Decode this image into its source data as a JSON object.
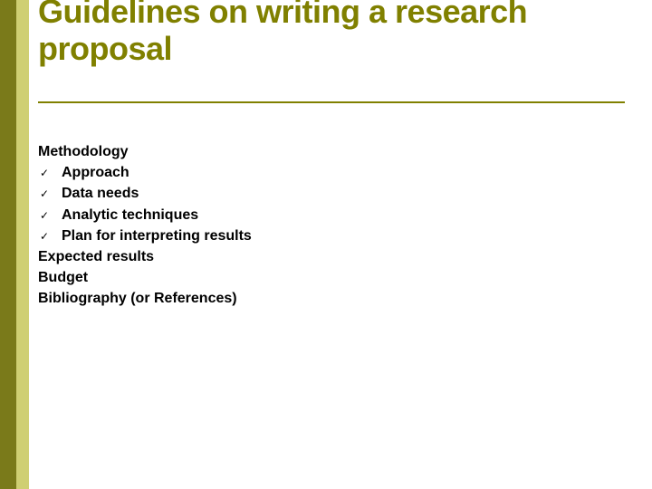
{
  "colors": {
    "stripe_dark": "#7a7a1a",
    "stripe_light": "#cfcf73",
    "title": "#808000",
    "rule": "#808000",
    "body_text": "#000000"
  },
  "title": "Guidelines on writing a research proposal",
  "sections": {
    "methodology_label": "Methodology",
    "methodology_items": {
      "0": "Approach",
      "1": "Data needs",
      "2": "Analytic techniques",
      "3": " Plan for interpreting results"
    },
    "expected_results": "Expected results",
    "budget": "Budget",
    "bibliography": "Bibliography (or References)"
  },
  "check_glyph": "✓"
}
